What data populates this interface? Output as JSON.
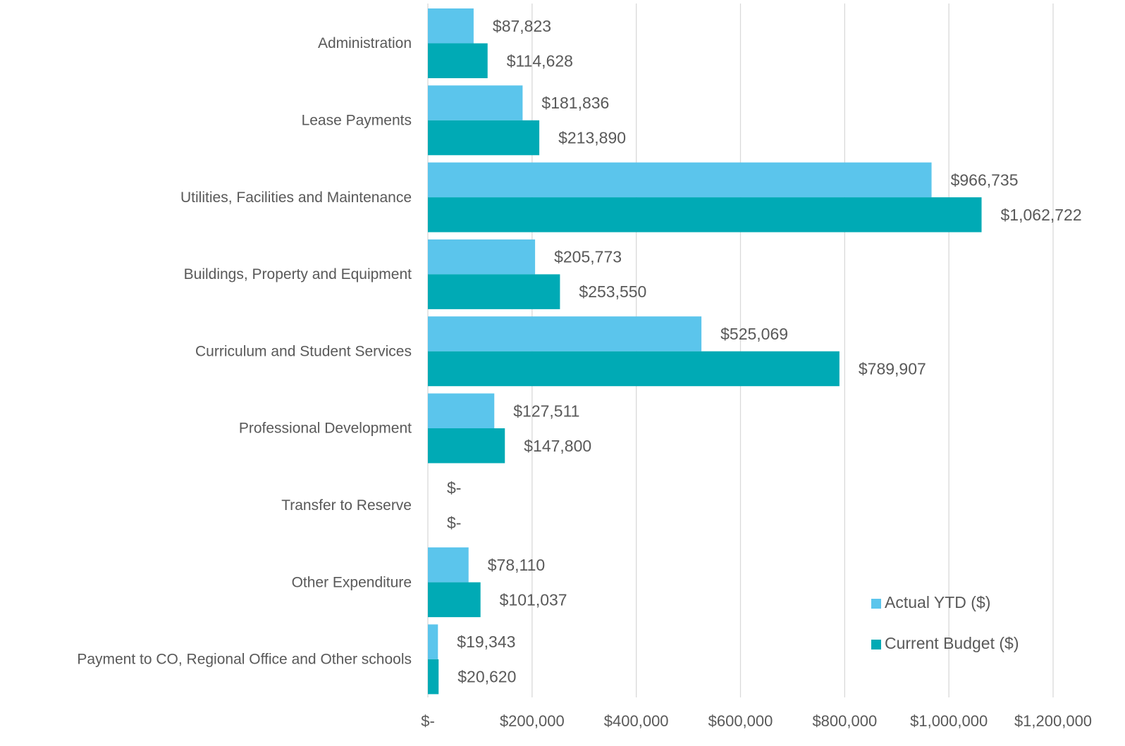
{
  "chart_data": {
    "type": "barh",
    "categories": [
      "Administration",
      "Lease Payments",
      "Utilities, Facilities and Maintenance",
      "Buildings, Property and Equipment",
      "Curriculum and Student Services",
      "Professional Development",
      "Transfer to Reserve",
      "Other Expenditure",
      "Payment to CO, Regional Office and Other schools"
    ],
    "series": [
      {
        "name": "Actual YTD ($)",
        "color": "#5bc5ec",
        "values": [
          87823,
          181836,
          966735,
          205773,
          525069,
          127511,
          0,
          78110,
          19343
        ],
        "value_labels": [
          "$87,823",
          "$181,836",
          "$966,735",
          "$205,773",
          "$525,069",
          "$127,511",
          "$-",
          "$78,110",
          "$19,343"
        ]
      },
      {
        "name": "Current Budget ($)",
        "color": "#00aab5",
        "values": [
          114628,
          213890,
          1062722,
          253550,
          789907,
          147800,
          0,
          101037,
          20620
        ],
        "value_labels": [
          "$114,628",
          "$213,890",
          "$1,062,722",
          "$253,550",
          "$789,907",
          "$147,800",
          "$-",
          "$101,037",
          "$20,620"
        ]
      }
    ],
    "xlim": [
      0,
      1200000
    ],
    "xticks": [
      {
        "value": 0,
        "label": "$-"
      },
      {
        "value": 200000,
        "label": "$200,000"
      },
      {
        "value": 400000,
        "label": "$400,000"
      },
      {
        "value": 600000,
        "label": "$600,000"
      },
      {
        "value": 800000,
        "label": "$800,000"
      },
      {
        "value": 1000000,
        "label": "$1,000,000"
      },
      {
        "value": 1200000,
        "label": "$1,200,000"
      }
    ],
    "grid": true,
    "legend": "lower right"
  }
}
